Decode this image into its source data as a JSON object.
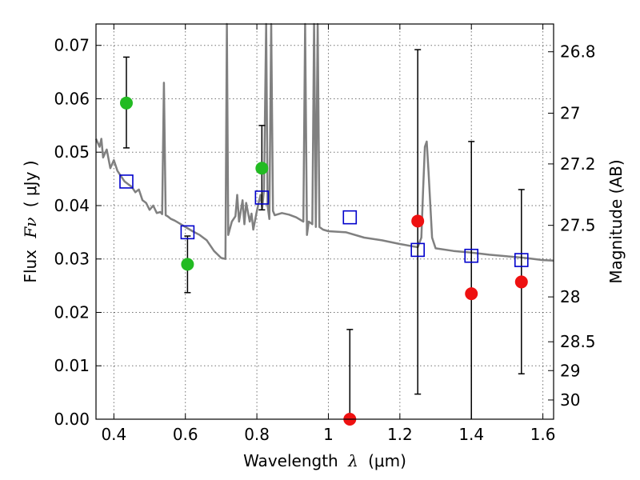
{
  "chart_data": {
    "type": "scatter",
    "title": "",
    "xlabel": "Wavelength",
    "xlabel_symbol": "λ",
    "xlabel_unit": "(μm)",
    "ylabel": "Flux",
    "ylabel_symbol": "Fν",
    "ylabel_unit": "( μJy )",
    "y2label": "Magnitude (AB)",
    "xlim": [
      0.35,
      1.63
    ],
    "ylim": [
      0.0,
      0.074
    ],
    "grid": true,
    "x_ticks": [
      {
        "value": 0.4,
        "label": "0.4"
      },
      {
        "value": 0.6,
        "label": "0.6"
      },
      {
        "value": 0.8,
        "label": "0.8"
      },
      {
        "value": 1.0,
        "label": "1"
      },
      {
        "value": 1.2,
        "label": "1.2"
      },
      {
        "value": 1.4,
        "label": "1.4"
      },
      {
        "value": 1.6,
        "label": "1.6"
      }
    ],
    "y_ticks": [
      {
        "value": 0.0,
        "label": "0.00"
      },
      {
        "value": 0.01,
        "label": "0.01"
      },
      {
        "value": 0.02,
        "label": "0.02"
      },
      {
        "value": 0.03,
        "label": "0.03"
      },
      {
        "value": 0.04,
        "label": "0.04"
      },
      {
        "value": 0.05,
        "label": "0.05"
      },
      {
        "value": 0.06,
        "label": "0.06"
      },
      {
        "value": 0.07,
        "label": "0.07"
      }
    ],
    "y2_ticks": [
      {
        "flux": 0.0688,
        "label": "26.8"
      },
      {
        "flux": 0.0573,
        "label": "27"
      },
      {
        "flux": 0.0478,
        "label": "27.2"
      },
      {
        "flux": 0.0363,
        "label": "27.5"
      },
      {
        "flux": 0.0229,
        "label": "28"
      },
      {
        "flux": 0.0145,
        "label": "28.5"
      },
      {
        "flux": 0.0091,
        "label": "29"
      },
      {
        "flux": 0.0036,
        "label": "30"
      }
    ],
    "series": [
      {
        "kind": "model-spectrum",
        "color": "#808080",
        "points": [
          [
            0.35,
            0.0525
          ],
          [
            0.36,
            0.051
          ],
          [
            0.365,
            0.0525
          ],
          [
            0.37,
            0.049
          ],
          [
            0.38,
            0.0505
          ],
          [
            0.39,
            0.047
          ],
          [
            0.4,
            0.0485
          ],
          [
            0.41,
            0.0465
          ],
          [
            0.42,
            0.0455
          ],
          [
            0.43,
            0.0445
          ],
          [
            0.45,
            0.0435
          ],
          [
            0.46,
            0.0425
          ],
          [
            0.47,
            0.043
          ],
          [
            0.48,
            0.041
          ],
          [
            0.49,
            0.0405
          ],
          [
            0.5,
            0.0392
          ],
          [
            0.51,
            0.04
          ],
          [
            0.52,
            0.0386
          ],
          [
            0.53,
            0.0388
          ],
          [
            0.535,
            0.0384
          ],
          [
            0.54,
            0.063
          ],
          [
            0.545,
            0.0382
          ],
          [
            0.55,
            0.038
          ],
          [
            0.56,
            0.0375
          ],
          [
            0.57,
            0.0372
          ],
          [
            0.58,
            0.0368
          ],
          [
            0.6,
            0.036
          ],
          [
            0.62,
            0.0352
          ],
          [
            0.64,
            0.0345
          ],
          [
            0.66,
            0.0335
          ],
          [
            0.68,
            0.0315
          ],
          [
            0.7,
            0.0302
          ],
          [
            0.712,
            0.03
          ],
          [
            0.716,
            0.074
          ],
          [
            0.72,
            0.0345
          ],
          [
            0.73,
            0.037
          ],
          [
            0.74,
            0.038
          ],
          [
            0.745,
            0.042
          ],
          [
            0.75,
            0.037
          ],
          [
            0.76,
            0.041
          ],
          [
            0.765,
            0.0365
          ],
          [
            0.77,
            0.0405
          ],
          [
            0.78,
            0.037
          ],
          [
            0.785,
            0.0385
          ],
          [
            0.79,
            0.0355
          ],
          [
            0.8,
            0.039
          ],
          [
            0.805,
            0.0405
          ],
          [
            0.81,
            0.042
          ],
          [
            0.815,
            0.0395
          ],
          [
            0.82,
            0.043
          ],
          [
            0.826,
            0.074
          ],
          [
            0.83,
            0.04
          ],
          [
            0.835,
            0.0375
          ],
          [
            0.84,
            0.074
          ],
          [
            0.845,
            0.039
          ],
          [
            0.85,
            0.0382
          ],
          [
            0.87,
            0.0386
          ],
          [
            0.89,
            0.0383
          ],
          [
            0.91,
            0.0378
          ],
          [
            0.93,
            0.037
          ],
          [
            0.935,
            0.074
          ],
          [
            0.94,
            0.0345
          ],
          [
            0.945,
            0.037
          ],
          [
            0.955,
            0.0365
          ],
          [
            0.96,
            0.074
          ],
          [
            0.965,
            0.036
          ],
          [
            0.97,
            0.074
          ],
          [
            0.975,
            0.036
          ],
          [
            0.985,
            0.0355
          ],
          [
            1.0,
            0.0352
          ],
          [
            1.05,
            0.035
          ],
          [
            1.1,
            0.034
          ],
          [
            1.15,
            0.0335
          ],
          [
            1.2,
            0.0328
          ],
          [
            1.25,
            0.0322
          ],
          [
            1.26,
            0.034
          ],
          [
            1.265,
            0.043
          ],
          [
            1.27,
            0.051
          ],
          [
            1.275,
            0.052
          ],
          [
            1.28,
            0.0465
          ],
          [
            1.29,
            0.034
          ],
          [
            1.3,
            0.032
          ],
          [
            1.35,
            0.0315
          ],
          [
            1.4,
            0.0312
          ],
          [
            1.45,
            0.0308
          ],
          [
            1.5,
            0.0305
          ],
          [
            1.55,
            0.0302
          ],
          [
            1.6,
            0.0298
          ],
          [
            1.63,
            0.0297
          ]
        ]
      },
      {
        "kind": "model-photometry",
        "marker": "open-square",
        "color": "#0000cc",
        "x": [
          0.435,
          0.606,
          0.814,
          1.06,
          1.25,
          1.4,
          1.54
        ],
        "y": [
          0.0445,
          0.035,
          0.0415,
          0.0378,
          0.0317,
          0.0306,
          0.0298
        ]
      },
      {
        "kind": "observed-green",
        "marker": "filled-circle",
        "color": "#22bb22",
        "x": [
          0.435,
          0.606,
          0.814
        ],
        "y": [
          0.0592,
          0.029,
          0.047
        ],
        "err_low": [
          0.0508,
          0.0237,
          0.0392
        ],
        "err_high": [
          0.0678,
          0.0343,
          0.055
        ]
      },
      {
        "kind": "observed-red",
        "marker": "filled-circle",
        "color": "#ee1111",
        "x": [
          1.06,
          1.25,
          1.4,
          1.54
        ],
        "y": [
          0.0,
          0.0371,
          0.0235,
          0.0257
        ],
        "err_low": [
          0.0,
          0.0047,
          0.0,
          0.0085
        ],
        "err_high": [
          0.0168,
          0.0692,
          0.052,
          0.043
        ]
      }
    ]
  }
}
